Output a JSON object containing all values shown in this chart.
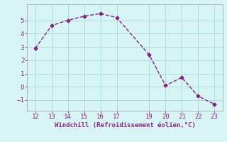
{
  "x": [
    12,
    13,
    14,
    15,
    16,
    17,
    19,
    20,
    21,
    22,
    23
  ],
  "y": [
    2.9,
    4.6,
    5.0,
    5.3,
    5.5,
    5.2,
    2.4,
    0.1,
    0.7,
    -0.7,
    -1.3
  ],
  "xticks": [
    12,
    13,
    14,
    15,
    16,
    17,
    19,
    20,
    21,
    22,
    23
  ],
  "yticks": [
    -1,
    0,
    1,
    2,
    3,
    4,
    5
  ],
  "ylim": [
    -1.8,
    6.2
  ],
  "xlim": [
    11.5,
    23.5
  ],
  "xlabel": "Windchill (Refroidissement éolien,°C)",
  "line_color": "#882288",
  "marker": "D",
  "marker_size": 2.5,
  "bg_color": "#d8f5f5",
  "grid_color": "#aadddd",
  "tick_color": "#882288",
  "label_color": "#882288",
  "font_family": "monospace",
  "spine_color": "#aaaaaa"
}
